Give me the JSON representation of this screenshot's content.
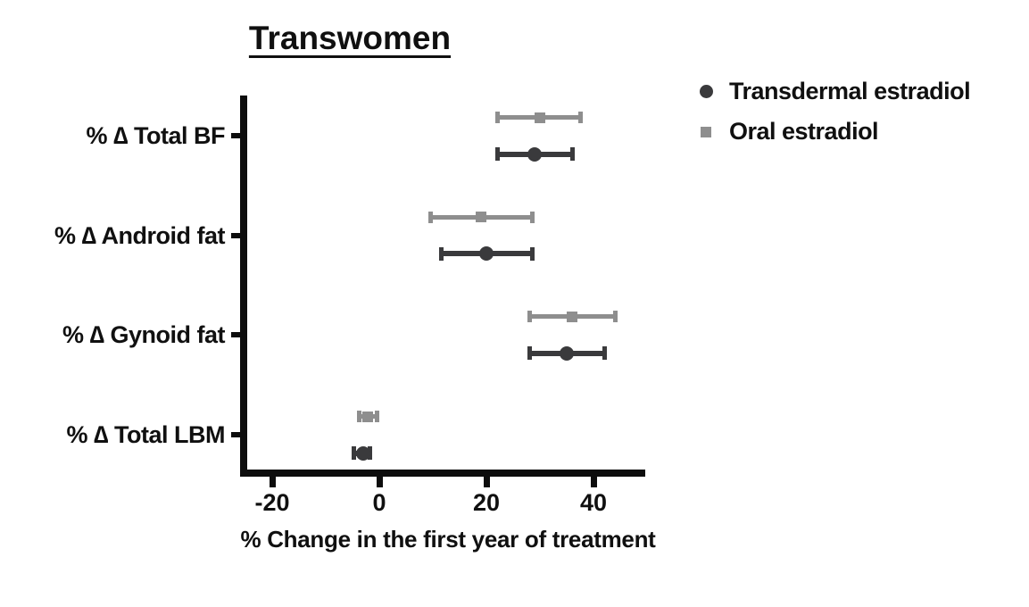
{
  "title": "Transwomen",
  "legend": {
    "items": [
      {
        "label": "Transdermal estradiol",
        "marker": "circle-icon",
        "color": "#3a3a3c"
      },
      {
        "label": "Oral estradiol",
        "marker": "square-icon",
        "color": "#8e8e8e"
      }
    ]
  },
  "chart_data": {
    "type": "scatter",
    "subtype": "horizontal-point-range-forest-plot",
    "title": "Transwomen",
    "xlabel": "% Change in the first year of treatment",
    "ylabel": "",
    "xlim": [
      -26,
      50
    ],
    "x_ticks": [
      -20,
      0,
      20,
      40
    ],
    "grid": false,
    "legend_position": "top-right",
    "categories": [
      "% ∆ Total BF",
      "% ∆ Android fat",
      "% ∆ Gynoid fat",
      "% ∆ Total LBM"
    ],
    "series": [
      {
        "name": "Transdermal estradiol",
        "marker": "circle",
        "color": "#3a3a3c",
        "values": [
          29,
          20,
          35,
          -3
        ],
        "ci_low": [
          22,
          11.5,
          28,
          -4.7
        ],
        "ci_high": [
          36,
          28.5,
          42,
          -1.7
        ]
      },
      {
        "name": "Oral estradiol",
        "marker": "square",
        "color": "#8e8e8e",
        "values": [
          30,
          19,
          36,
          -2.2
        ],
        "ci_low": [
          22,
          9.5,
          28,
          -3.8
        ],
        "ci_high": [
          37.5,
          28.5,
          44,
          -0.5
        ]
      }
    ]
  }
}
